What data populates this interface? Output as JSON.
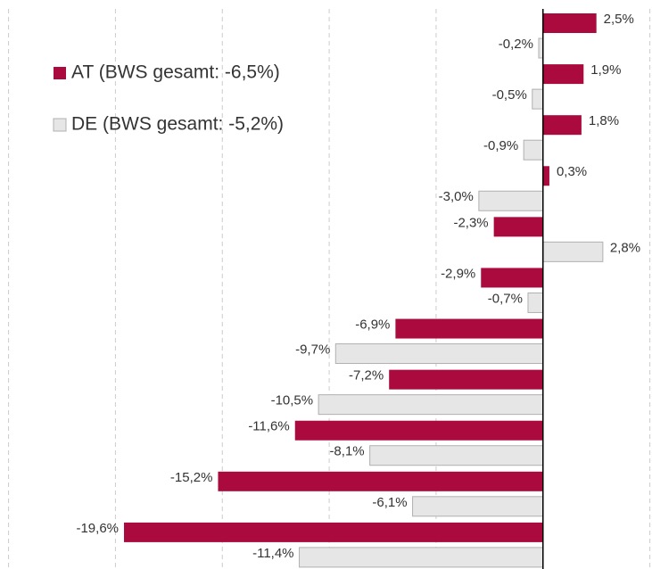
{
  "chart_data": {
    "type": "hbar",
    "categories": [
      null,
      null,
      null,
      null,
      null,
      null,
      null,
      null,
      null,
      null,
      null
    ],
    "series": [
      {
        "name": "AT (BWS gesamt: -6,5%)",
        "color": "#ab0a3f",
        "values": [
          2.5,
          1.9,
          1.8,
          0.3,
          -2.3,
          -2.9,
          -6.9,
          -7.2,
          -11.6,
          -15.2,
          -19.6
        ],
        "value_labels": [
          "2,5%",
          "1,9%",
          "1,8%",
          "0,3%",
          "-2,3%",
          "-2,9%",
          "-6,9%",
          "-7,2%",
          "-11,6%",
          "-15,2%",
          "-19,6%"
        ]
      },
      {
        "name": "DE (BWS gesamt: -5,2%)",
        "color": "#e6e6e6",
        "values": [
          -0.2,
          -0.5,
          -0.9,
          -3.0,
          2.8,
          -0.7,
          -9.7,
          -10.5,
          -8.1,
          -6.1,
          -11.4
        ],
        "value_labels": [
          "-0,2%",
          "-0,5%",
          "-0,9%",
          "-3,0%",
          "2,8%",
          "-0,7%",
          "-9,7%",
          "-10,5%",
          "-8,1%",
          "-6,1%",
          "-11,4%"
        ]
      }
    ],
    "xlim": [
      -25.4,
      5.1
    ],
    "xticks": [
      -25,
      -20,
      -15,
      -10,
      -5,
      0,
      5
    ],
    "grid": true,
    "legend": "upper left"
  }
}
